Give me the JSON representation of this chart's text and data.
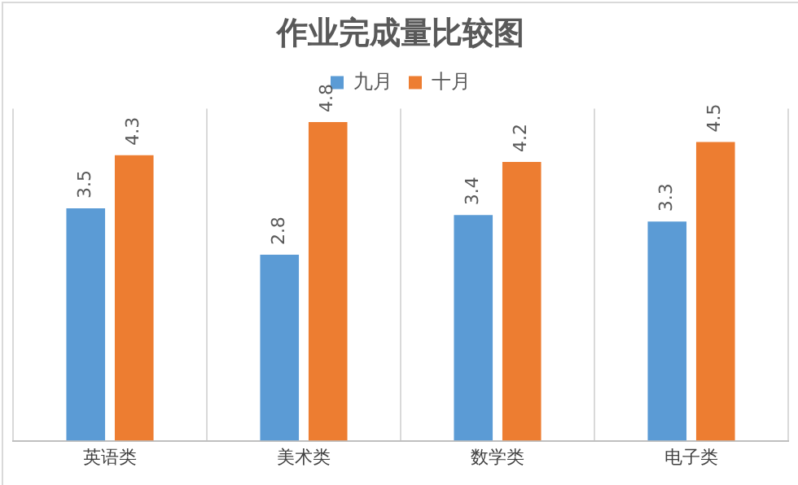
{
  "chart_data": {
    "type": "bar",
    "title": "作业完成量比较图",
    "categories": [
      "英语类",
      "美术类",
      "数学类",
      "电子类"
    ],
    "series": [
      {
        "name": "九月",
        "color": "#5b9bd5",
        "values": [
          3.5,
          2.8,
          3.4,
          3.3
        ]
      },
      {
        "name": "十月",
        "color": "#ed7d31",
        "values": [
          4.3,
          4.8,
          4.2,
          4.5
        ]
      }
    ],
    "ylim": [
      0,
      5
    ],
    "grid": "x",
    "legend": "top",
    "data_labels": true,
    "tick_labels": "x"
  }
}
